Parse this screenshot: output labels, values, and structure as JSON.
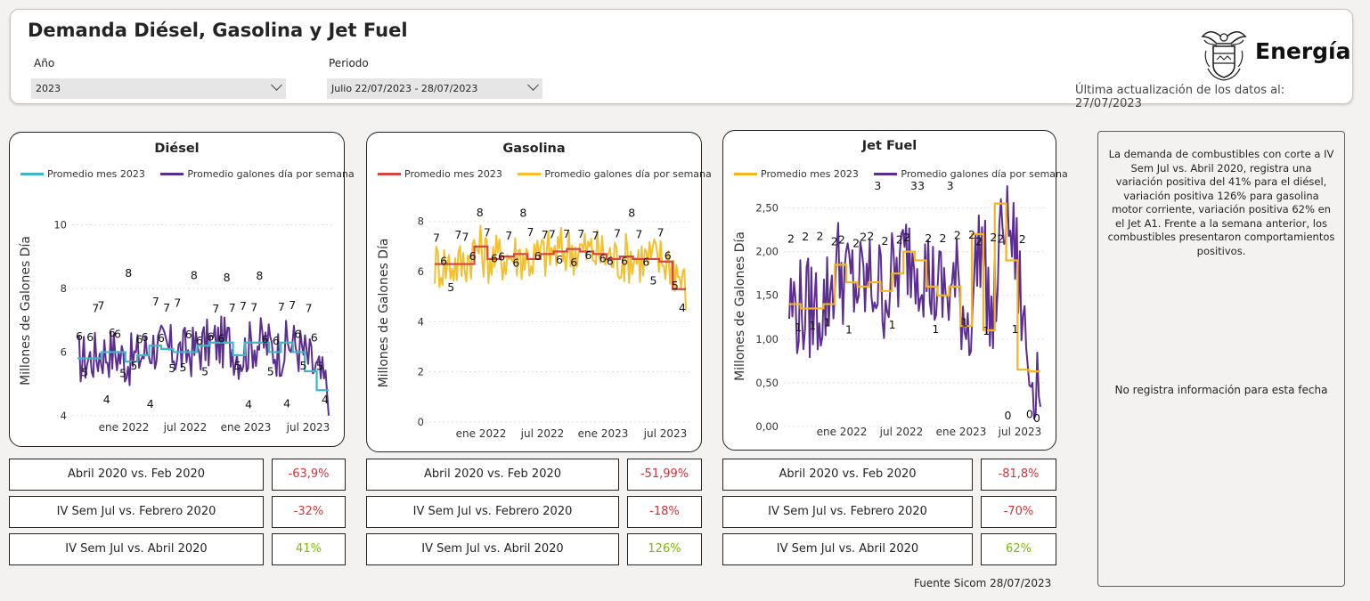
{
  "header": {
    "title": "Demanda Diésel, Gasolina y Jet Fuel",
    "year_label": "Año",
    "year_value": "2023",
    "period_label": "Periodo",
    "period_value": "Julio 22/07/2023 - 28/07/2023",
    "brand": "Energía",
    "updated": "Última actualización de los datos al: 27/07/2023"
  },
  "colors": {
    "diesel_avg": "#3fb6c8",
    "gas_avg": "#d64541",
    "gas_week": "#f5c02b",
    "jet_avg": "#f5b320",
    "week": "#5c2e91",
    "negative": "#d13438",
    "positive": "#7fba00"
  },
  "cards": [
    {
      "title": "Diésel",
      "legend_avg": "Promedio mes 2023",
      "legend_week": "Promedio galones día por semana",
      "comparisons": [
        {
          "label": "Abril 2020 vs. Feb 2020",
          "value": "-63,9%",
          "sign": "negative"
        },
        {
          "label": "IV Sem Jul vs. Febrero 2020",
          "value": "-32%",
          "sign": "negative"
        },
        {
          "label": "IV Sem Jul vs. Abril 2020",
          "value": "41%",
          "sign": "positive"
        }
      ]
    },
    {
      "title": "Gasolina",
      "legend_avg": "Promedio mes 2023",
      "legend_week": "Promedio galones día por semana",
      "comparisons": [
        {
          "label": "Abril 2020 vs. Feb 2020",
          "value": "-51,99%",
          "sign": "negative"
        },
        {
          "label": "IV Sem Jul vs. Febrero 2020",
          "value": "-18%",
          "sign": "negative"
        },
        {
          "label": "IV Sem Jul vs. Abril 2020",
          "value": "126%",
          "sign": "positive"
        }
      ]
    },
    {
      "title": "Jet Fuel",
      "legend_avg": "Promedio mes 2023",
      "legend_week": "Promedio galones día por semana",
      "comparisons": [
        {
          "label": "Abril 2020 vs. Feb 2020",
          "value": "-81,8%",
          "sign": "negative"
        },
        {
          "label": "IV Sem Jul vs. Febrero 2020",
          "value": "-70%",
          "sign": "negative"
        },
        {
          "label": "IV Sem Jul vs. Abril 2020",
          "value": "62%",
          "sign": "positive"
        }
      ]
    }
  ],
  "note": {
    "text": "La demanda de combustibles con corte a IV Sem Jul vs. Abril 2020, registra una variación positiva  del 41% para el diésel, variación positiva 126% para gasolina motor corriente, variación positiva  62% en el Jet A1. Frente a la semana anterior, los combustibles presentaron comportamientos positivos.",
    "empty": "No registra información para esta fecha"
  },
  "source": "Fuente Sicom 28/07/2023",
  "chart_data": [
    {
      "type": "line",
      "title": "Diésel",
      "ylabel": "Millones de Galones Día",
      "ylim": [
        3.8,
        10.8
      ],
      "yticks": [
        "4",
        "6",
        "8",
        "10"
      ],
      "xticks": [
        "ene 2022",
        "jul 2022",
        "ene 2023",
        "jul 2023"
      ],
      "series": [
        {
          "name": "Promedio mes 2023",
          "values": [
            5.8,
            5.8,
            6.0,
            6.0,
            5.7,
            5.9,
            6.2,
            6.1,
            6.0,
            6.0,
            6.2,
            6.3,
            6.3,
            5.9,
            6.3,
            6.3,
            6.0,
            6.3,
            6.0,
            5.4,
            4.8
          ]
        },
        {
          "name": "Promedio galones día por semana",
          "values": [
            6,
            5,
            6,
            7,
            7,
            4,
            6,
            6,
            5,
            8,
            5,
            6,
            6,
            4,
            7,
            6,
            7,
            5,
            7,
            5,
            6,
            8,
            6,
            5,
            6,
            7,
            6,
            8,
            7,
            5,
            7,
            4,
            7,
            8,
            6,
            5,
            6,
            7,
            4,
            7,
            6,
            5,
            7,
            6,
            5,
            4
          ]
        }
      ]
    },
    {
      "type": "line",
      "title": "Gasolina",
      "ylabel": "Millones de Galones Día",
      "ylim": [
        0,
        8.7
      ],
      "yticks": [
        "0",
        "2",
        "4",
        "6",
        "8"
      ],
      "xticks": [
        "ene 2022",
        "jul 2022",
        "ene 2023",
        "jul 2023"
      ],
      "series": [
        {
          "name": "Promedio mes 2023",
          "values": [
            6.3,
            6.3,
            6.3,
            7.0,
            6.5,
            6.6,
            6.7,
            6.5,
            6.7,
            6.8,
            6.9,
            6.8,
            6.7,
            6.5,
            6.6,
            6.5,
            6.5,
            6.4,
            5.3
          ]
        },
        {
          "name": "Promedio galones día por semana",
          "values": [
            7,
            6,
            5,
            7,
            7,
            6,
            8,
            7,
            6,
            6,
            7,
            6,
            8,
            7,
            6,
            7,
            7,
            6,
            7,
            6,
            7,
            6,
            7,
            6,
            6,
            7,
            6,
            8,
            7,
            6,
            5,
            7,
            6,
            5,
            4
          ]
        }
      ]
    },
    {
      "type": "line",
      "title": "Jet Fuel",
      "ylabel": "Millones de Galones Día",
      "ylim": [
        0,
        2.75
      ],
      "yticks": [
        "0,00",
        "0,50",
        "1,00",
        "1,50",
        "2,00",
        "2,50"
      ],
      "xticks": [
        "ene 2022",
        "jul 2022",
        "ene 2023",
        "jul 2023"
      ],
      "series": [
        {
          "name": "Promedio mes 2023",
          "values": [
            1.4,
            1.35,
            1.35,
            1.4,
            1.85,
            1.65,
            1.6,
            1.65,
            1.55,
            1.75,
            2.0,
            1.9,
            1.6,
            1.5,
            1.6,
            1.15,
            2.2,
            1.1,
            2.55,
            1.9,
            0.65,
            0.63
          ]
        },
        {
          "name": "Promedio galones día por semana",
          "values": [
            2,
            1,
            2,
            1,
            2,
            1,
            2,
            2,
            1,
            2,
            2,
            2,
            3,
            2,
            1,
            2,
            2,
            3,
            3,
            2,
            1,
            2,
            3,
            2,
            1,
            2,
            2,
            1,
            2,
            2,
            0,
            1,
            2,
            0,
            0
          ]
        }
      ]
    }
  ]
}
